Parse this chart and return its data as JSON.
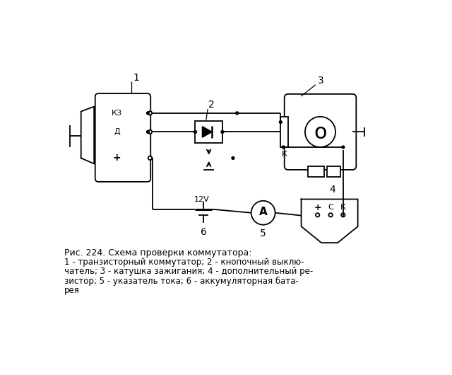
{
  "title": "Рис. 224. Схема проверки коммутатора:",
  "caption_lines": [
    "1 - транзисторный коммутатор; 2 - кнопочный выклю-",
    "чатель; 3 - катушка зажигания; 4 - дополнительный ре-",
    "зистор; 5 - указатель тока; 6 - аккумуляторная бата-",
    "рея"
  ],
  "bg_color": "#ffffff",
  "line_color": "#000000",
  "font_size": 9
}
